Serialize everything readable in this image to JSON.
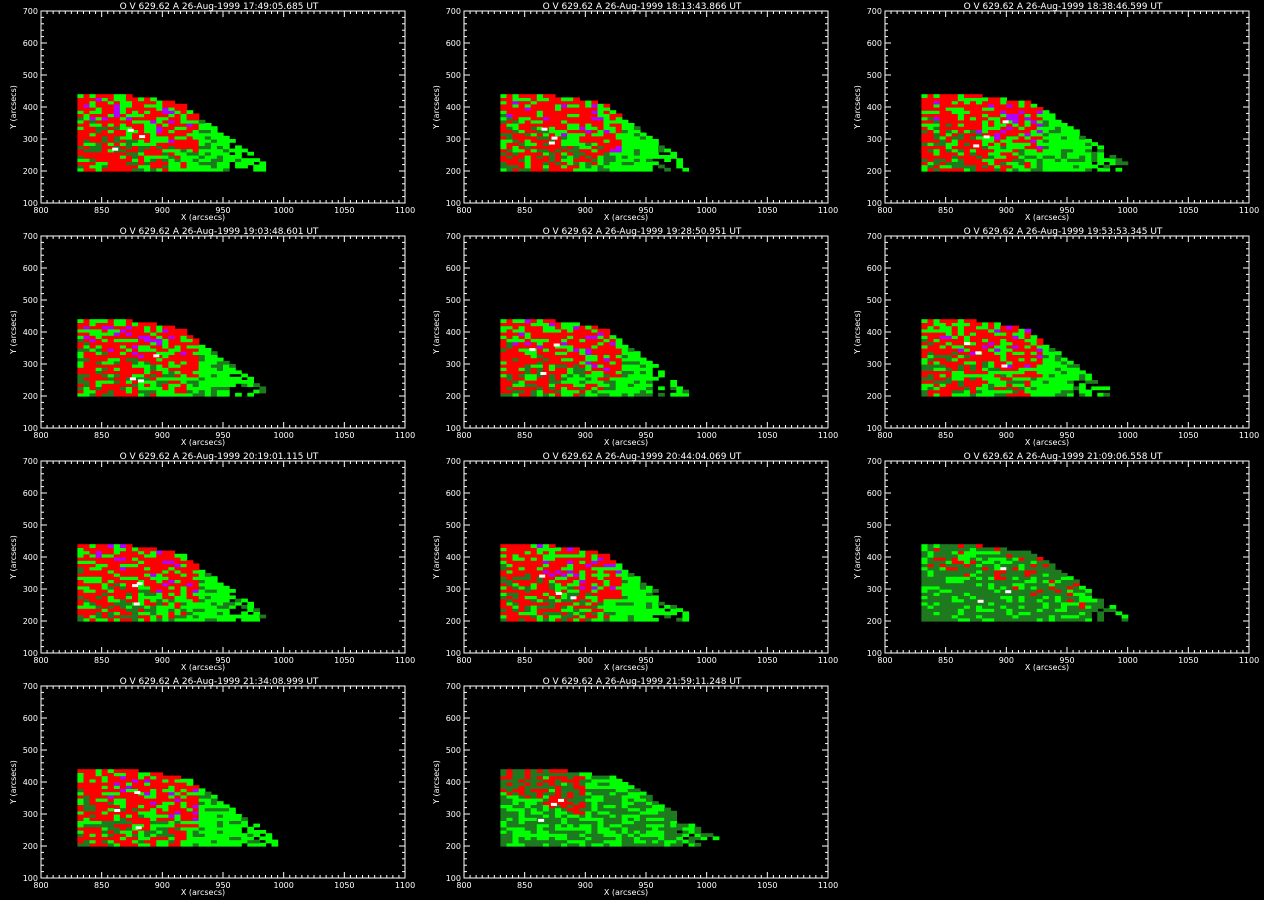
{
  "colors": {
    "background": "#000000",
    "axes": "#ffffff",
    "low": "#1f7a1f",
    "mid": "#00ff00",
    "high": "#ff0000",
    "peak": "#b000ff",
    "max": "#ffffff"
  },
  "chart_data": [
    {
      "type": "heatmap",
      "title": "O V 629.62 A 26-Aug-1999 17:49:05.685 UT",
      "xlabel": "X (arcsecs)",
      "ylabel": "Y (arcsecs)",
      "xlim": [
        800,
        1100
      ],
      "ylim": [
        100,
        700
      ],
      "xticks": [
        "800",
        "850",
        "900",
        "950",
        "1000",
        "1050",
        "1100"
      ],
      "yticks": [
        "100",
        "200",
        "300",
        "400",
        "500",
        "600",
        "700"
      ],
      "emission_region": {
        "x": [
          830,
          985
        ],
        "y": [
          200,
          440
        ]
      },
      "grid": false
    },
    {
      "type": "heatmap",
      "title": "O V 629.62 A 26-Aug-1999 18:13:43.866 UT",
      "xlabel": "X (arcsecs)",
      "ylabel": "Y (arcsecs)",
      "xlim": [
        800,
        1100
      ],
      "ylim": [
        100,
        700
      ],
      "xticks": [
        "800",
        "850",
        "900",
        "950",
        "1000",
        "1050",
        "1100"
      ],
      "yticks": [
        "100",
        "200",
        "300",
        "400",
        "500",
        "600",
        "700"
      ],
      "emission_region": {
        "x": [
          830,
          985
        ],
        "y": [
          200,
          440
        ]
      },
      "grid": false
    },
    {
      "type": "heatmap",
      "title": "O V 629.62 A 26-Aug-1999 18:38:46.599 UT",
      "xlabel": "X (arcsecs)",
      "ylabel": "Y (arcsecs)",
      "xlim": [
        800,
        1100
      ],
      "ylim": [
        100,
        700
      ],
      "xticks": [
        "800",
        "850",
        "900",
        "950",
        "1000",
        "1050",
        "1100"
      ],
      "yticks": [
        "100",
        "200",
        "300",
        "400",
        "500",
        "600",
        "700"
      ],
      "emission_region": {
        "x": [
          830,
          1000
        ],
        "y": [
          200,
          440
        ]
      },
      "grid": false
    },
    {
      "type": "heatmap",
      "title": "O V 629.62 A 26-Aug-1999 19:03:48.601 UT",
      "xlabel": "X (arcsecs)",
      "ylabel": "Y (arcsecs)",
      "xlim": [
        800,
        1100
      ],
      "ylim": [
        100,
        700
      ],
      "xticks": [
        "800",
        "850",
        "900",
        "950",
        "1000",
        "1050",
        "1100"
      ],
      "yticks": [
        "100",
        "200",
        "300",
        "400",
        "500",
        "600",
        "700"
      ],
      "emission_region": {
        "x": [
          830,
          985
        ],
        "y": [
          200,
          440
        ]
      },
      "grid": false
    },
    {
      "type": "heatmap",
      "title": "O V 629.62 A 26-Aug-1999 19:28:50.951 UT",
      "xlabel": "X (arcsecs)",
      "ylabel": "Y (arcsecs)",
      "xlim": [
        800,
        1100
      ],
      "ylim": [
        100,
        700
      ],
      "xticks": [
        "800",
        "850",
        "900",
        "950",
        "1000",
        "1050",
        "1100"
      ],
      "yticks": [
        "100",
        "200",
        "300",
        "400",
        "500",
        "600",
        "700"
      ],
      "emission_region": {
        "x": [
          830,
          985
        ],
        "y": [
          200,
          440
        ]
      },
      "grid": false
    },
    {
      "type": "heatmap",
      "title": "O V 629.62 A 26-Aug-1999 19:53:53.345 UT",
      "xlabel": "X (arcsecs)",
      "ylabel": "Y (arcsecs)",
      "xlim": [
        800,
        1100
      ],
      "ylim": [
        100,
        700
      ],
      "xticks": [
        "800",
        "850",
        "900",
        "950",
        "1000",
        "1050",
        "1100"
      ],
      "yticks": [
        "100",
        "200",
        "300",
        "400",
        "500",
        "600",
        "700"
      ],
      "emission_region": {
        "x": [
          830,
          985
        ],
        "y": [
          200,
          440
        ]
      },
      "grid": false
    },
    {
      "type": "heatmap",
      "title": "O V 629.62 A 26-Aug-1999 20:19:01.115 UT",
      "xlabel": "X (arcsecs)",
      "ylabel": "Y (arcsecs)",
      "xlim": [
        800,
        1100
      ],
      "ylim": [
        100,
        700
      ],
      "xticks": [
        "800",
        "850",
        "900",
        "950",
        "1000",
        "1050",
        "1100"
      ],
      "yticks": [
        "100",
        "200",
        "300",
        "400",
        "500",
        "600",
        "700"
      ],
      "emission_region": {
        "x": [
          830,
          985
        ],
        "y": [
          200,
          440
        ]
      },
      "grid": false
    },
    {
      "type": "heatmap",
      "title": "O V 629.62 A 26-Aug-1999 20:44:04.069 UT",
      "xlabel": "X (arcsecs)",
      "ylabel": "Y (arcsecs)",
      "xlim": [
        800,
        1100
      ],
      "ylim": [
        100,
        700
      ],
      "xticks": [
        "800",
        "850",
        "900",
        "950",
        "1000",
        "1050",
        "1100"
      ],
      "yticks": [
        "100",
        "200",
        "300",
        "400",
        "500",
        "600",
        "700"
      ],
      "emission_region": {
        "x": [
          830,
          985
        ],
        "y": [
          200,
          440
        ]
      },
      "grid": false
    },
    {
      "type": "heatmap",
      "title": "O V 629.62 A 26-Aug-1999 21:09:06.558 UT",
      "xlabel": "X (arcsecs)",
      "ylabel": "Y (arcsecs)",
      "xlim": [
        800,
        1100
      ],
      "ylim": [
        100,
        700
      ],
      "xticks": [
        "800",
        "850",
        "900",
        "950",
        "1000",
        "1050",
        "1100"
      ],
      "yticks": [
        "100",
        "200",
        "300",
        "400",
        "500",
        "600",
        "700"
      ],
      "emission_region": {
        "x": [
          830,
          1000
        ],
        "y": [
          200,
          440
        ]
      },
      "grid": false
    },
    {
      "type": "heatmap",
      "title": "O V 629.62 A 26-Aug-1999 21:34:08.999 UT",
      "xlabel": "X (arcsecs)",
      "ylabel": "Y (arcsecs)",
      "xlim": [
        800,
        1100
      ],
      "ylim": [
        100,
        700
      ],
      "xticks": [
        "800",
        "850",
        "900",
        "950",
        "1000",
        "1050",
        "1100"
      ],
      "yticks": [
        "100",
        "200",
        "300",
        "400",
        "500",
        "600",
        "700"
      ],
      "emission_region": {
        "x": [
          830,
          995
        ],
        "y": [
          200,
          440
        ]
      },
      "grid": false
    },
    {
      "type": "heatmap",
      "title": "O V 629.62 A 26-Aug-1999 21:59:11.248 UT",
      "xlabel": "X (arcsecs)",
      "ylabel": "Y (arcsecs)",
      "xlim": [
        800,
        1100
      ],
      "ylim": [
        100,
        700
      ],
      "xticks": [
        "800",
        "850",
        "900",
        "950",
        "1000",
        "1050",
        "1100"
      ],
      "yticks": [
        "100",
        "200",
        "300",
        "400",
        "500",
        "600",
        "700"
      ],
      "emission_region": {
        "x": [
          830,
          1010
        ],
        "y": [
          200,
          440
        ]
      },
      "grid": false
    }
  ]
}
